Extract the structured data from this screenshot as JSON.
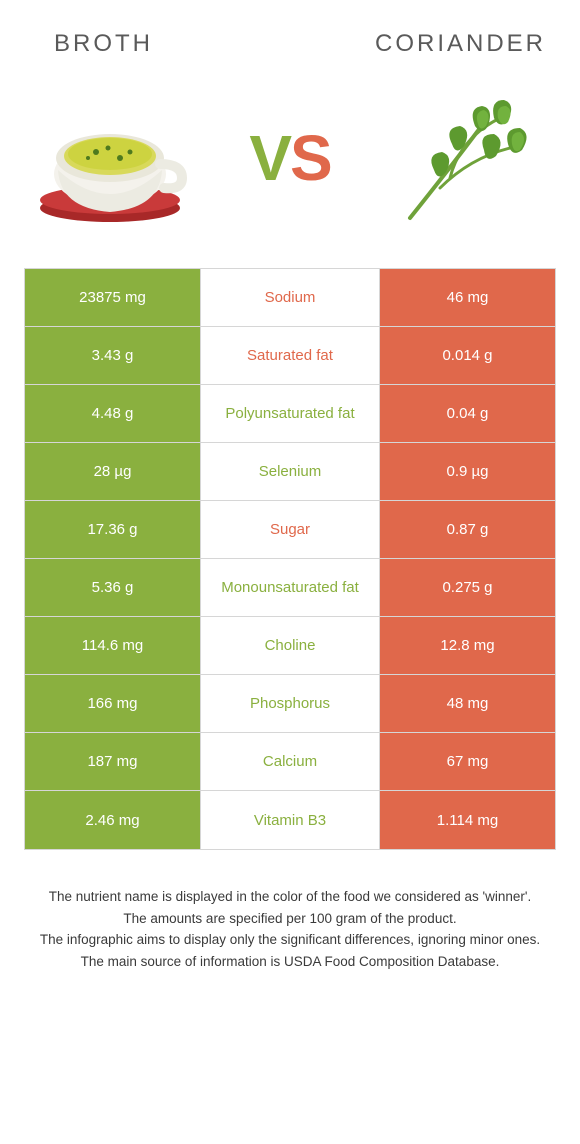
{
  "header": {
    "left": "BROTH",
    "right": "CORIANDER"
  },
  "vs": {
    "v": "V",
    "s": "S"
  },
  "colors": {
    "green": "#8ab03f",
    "orange": "#e0684b",
    "border": "#d6d6d6",
    "text": "#333333"
  },
  "rows": [
    {
      "left": "23875 mg",
      "label": "Sodium",
      "winner": "orange",
      "right": "46 mg"
    },
    {
      "left": "3.43 g",
      "label": "Saturated fat",
      "winner": "orange",
      "right": "0.014 g"
    },
    {
      "left": "4.48 g",
      "label": "Polyunsaturated fat",
      "winner": "green",
      "right": "0.04 g"
    },
    {
      "left": "28 µg",
      "label": "Selenium",
      "winner": "green",
      "right": "0.9 µg"
    },
    {
      "left": "17.36 g",
      "label": "Sugar",
      "winner": "orange",
      "right": "0.87 g"
    },
    {
      "left": "5.36 g",
      "label": "Monounsaturated fat",
      "winner": "green",
      "right": "0.275 g"
    },
    {
      "left": "114.6 mg",
      "label": "Choline",
      "winner": "green",
      "right": "12.8 mg"
    },
    {
      "left": "166 mg",
      "label": "Phosphorus",
      "winner": "green",
      "right": "48 mg"
    },
    {
      "left": "187 mg",
      "label": "Calcium",
      "winner": "green",
      "right": "67 mg"
    },
    {
      "left": "2.46 mg",
      "label": "Vitamin B3",
      "winner": "green",
      "right": "1.114 mg"
    }
  ],
  "footer": {
    "line1": "The nutrient name is displayed in the color of the food we considered as 'winner'.",
    "line2": "The amounts are specified per 100 gram of the product.",
    "line3": "The infographic aims to display only the significant differences, ignoring minor ones.",
    "line4": "The main source of information is USDA Food Composition Database."
  }
}
